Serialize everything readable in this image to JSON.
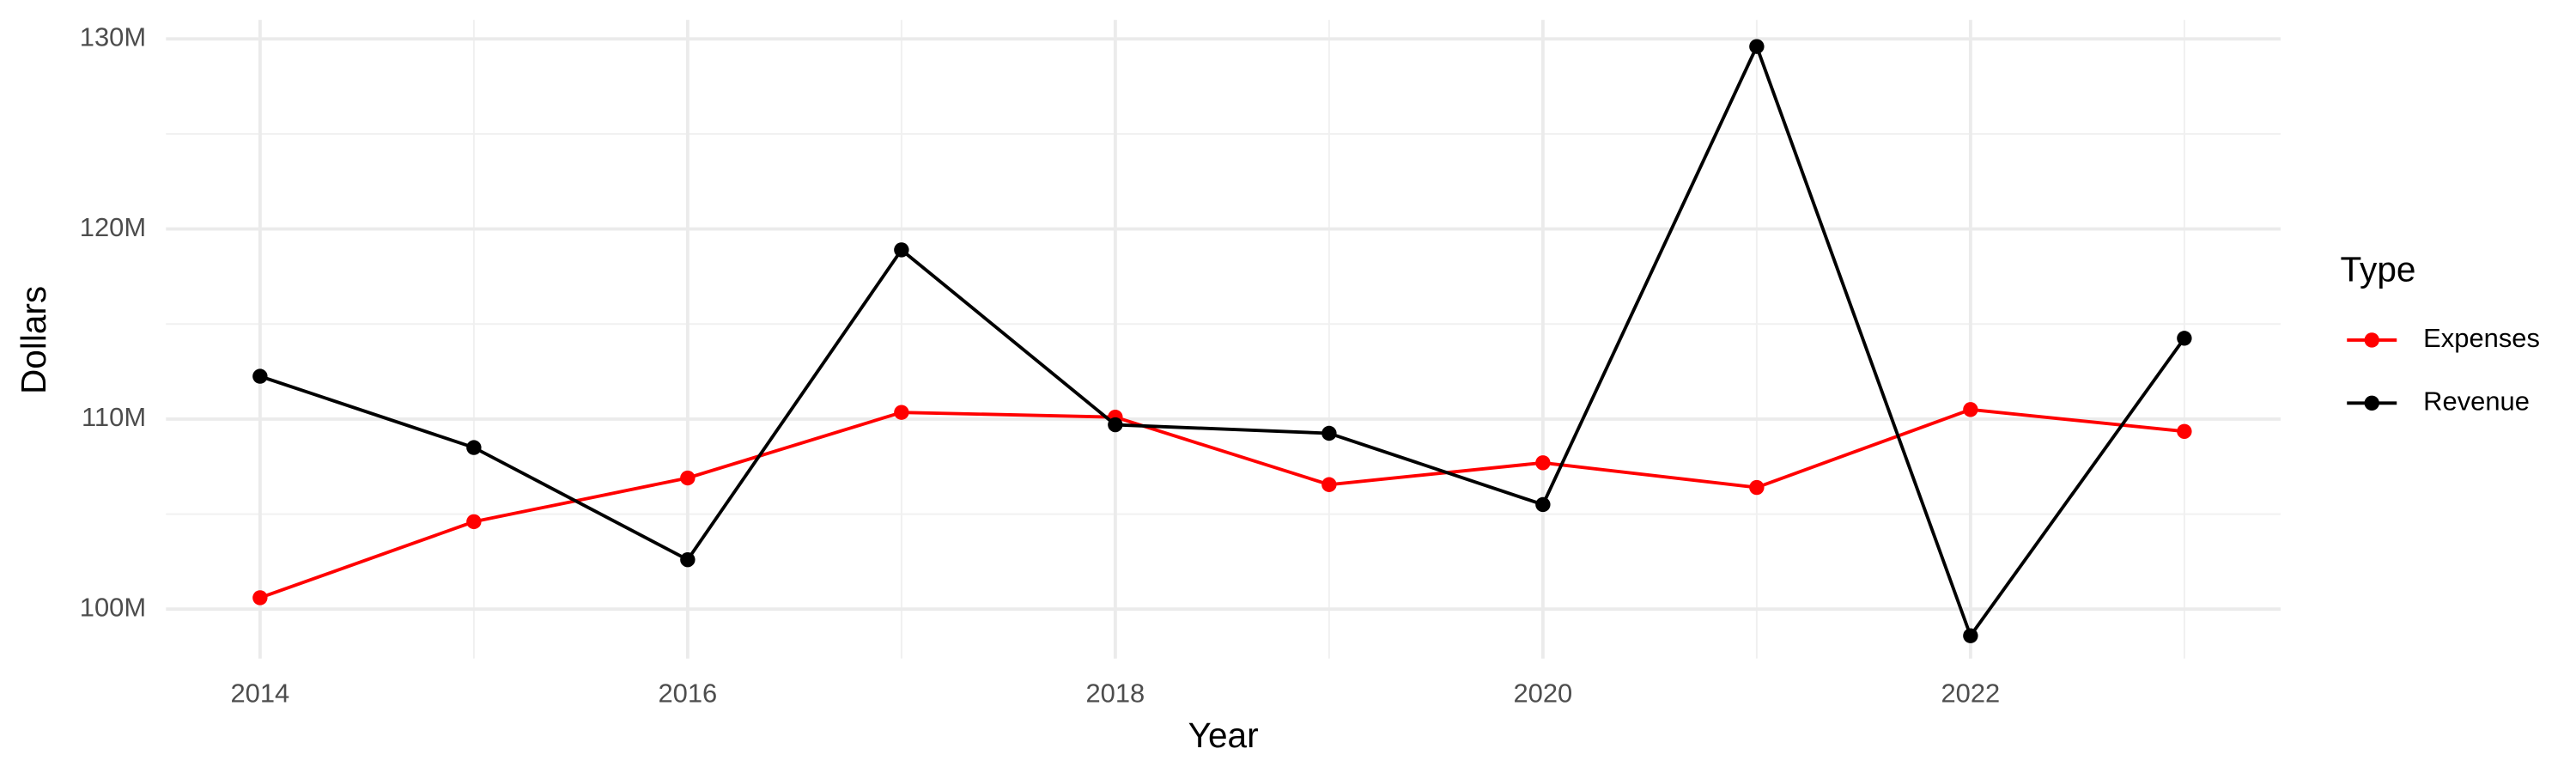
{
  "chart_data": {
    "type": "line",
    "x_label": "Year",
    "y_label": "Dollars",
    "legend_title": "Type",
    "x": [
      2014,
      2015,
      2016,
      2017,
      2018,
      2019,
      2020,
      2021,
      2022,
      2023
    ],
    "series": [
      {
        "name": "Expenses",
        "color": "#ff0000",
        "values": [
          100600000,
          104600000,
          106900000,
          110350000,
          110100000,
          106550000,
          107700000,
          106400000,
          110500000,
          109350000
        ]
      },
      {
        "name": "Revenue",
        "color": "#000000",
        "values": [
          112250000,
          108500000,
          102600000,
          118900000,
          109700000,
          109250000,
          105500000,
          129600000,
          98600000,
          114250000
        ]
      }
    ],
    "xlim": [
      2013.56,
      2023.45
    ],
    "xticks": [
      2014,
      2016,
      2018,
      2020,
      2022
    ],
    "ylim": [
      97400000,
      131000000
    ],
    "yticks": [
      {
        "value": 100000000,
        "label": "100M"
      },
      {
        "value": 110000000,
        "label": "110M"
      },
      {
        "value": 120000000,
        "label": "120M"
      },
      {
        "value": 130000000,
        "label": "130M"
      }
    ],
    "grid": true,
    "legend": "right"
  }
}
